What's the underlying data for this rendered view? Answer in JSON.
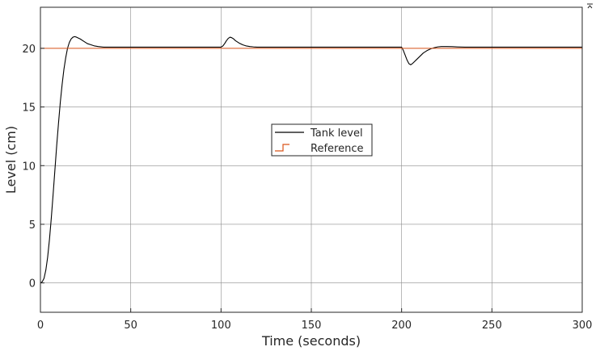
{
  "chart_data": {
    "type": "line",
    "title": "",
    "xlabel": "Time (seconds)",
    "ylabel": "Level (cm)",
    "xlim": [
      0,
      300
    ],
    "ylim": [
      -2.5,
      23.5
    ],
    "xticks": [
      0,
      50,
      100,
      150,
      200,
      250,
      300
    ],
    "yticks": [
      0,
      5,
      10,
      15,
      20
    ],
    "grid": true,
    "legend_position": "center",
    "series": [
      {
        "name": "Tank level",
        "color": "#000000",
        "style": "line",
        "x": [
          0,
          1,
          2,
          3,
          4,
          5,
          6,
          7,
          8,
          9,
          10,
          11,
          12,
          13,
          14,
          15,
          16,
          17,
          18,
          19,
          20,
          22,
          24,
          26,
          28,
          30,
          32,
          35,
          40,
          50,
          60,
          70,
          80,
          90,
          100,
          101,
          102,
          103,
          104,
          105,
          106,
          107,
          108,
          110,
          112,
          114,
          116,
          118,
          120,
          130,
          150,
          180,
          200,
          201,
          202,
          203,
          204,
          205,
          206,
          207,
          208,
          210,
          212,
          214,
          216,
          218,
          220,
          222,
          225,
          228,
          231,
          235,
          250,
          280,
          300
        ],
        "y": [
          0,
          0.1,
          0.4,
          1.1,
          2.2,
          3.7,
          5.5,
          7.5,
          9.6,
          11.7,
          13.6,
          15.4,
          16.9,
          18.2,
          19.2,
          20.0,
          20.5,
          20.8,
          20.95,
          21.0,
          20.95,
          20.8,
          20.6,
          20.4,
          20.3,
          20.2,
          20.15,
          20.1,
          20.1,
          20.1,
          20.1,
          20.1,
          20.1,
          20.1,
          20.1,
          20.2,
          20.4,
          20.65,
          20.85,
          20.95,
          20.9,
          20.8,
          20.65,
          20.45,
          20.3,
          20.2,
          20.15,
          20.12,
          20.1,
          20.1,
          20.1,
          20.1,
          20.1,
          19.8,
          19.4,
          19.0,
          18.7,
          18.6,
          18.7,
          18.85,
          19.0,
          19.3,
          19.6,
          19.8,
          19.95,
          20.05,
          20.12,
          20.15,
          20.15,
          20.14,
          20.12,
          20.1,
          20.1,
          20.1,
          20.1
        ]
      },
      {
        "name": "Reference",
        "color": "#d95319",
        "style": "step",
        "x": [
          0,
          300
        ],
        "y": [
          20,
          20
        ]
      }
    ]
  }
}
